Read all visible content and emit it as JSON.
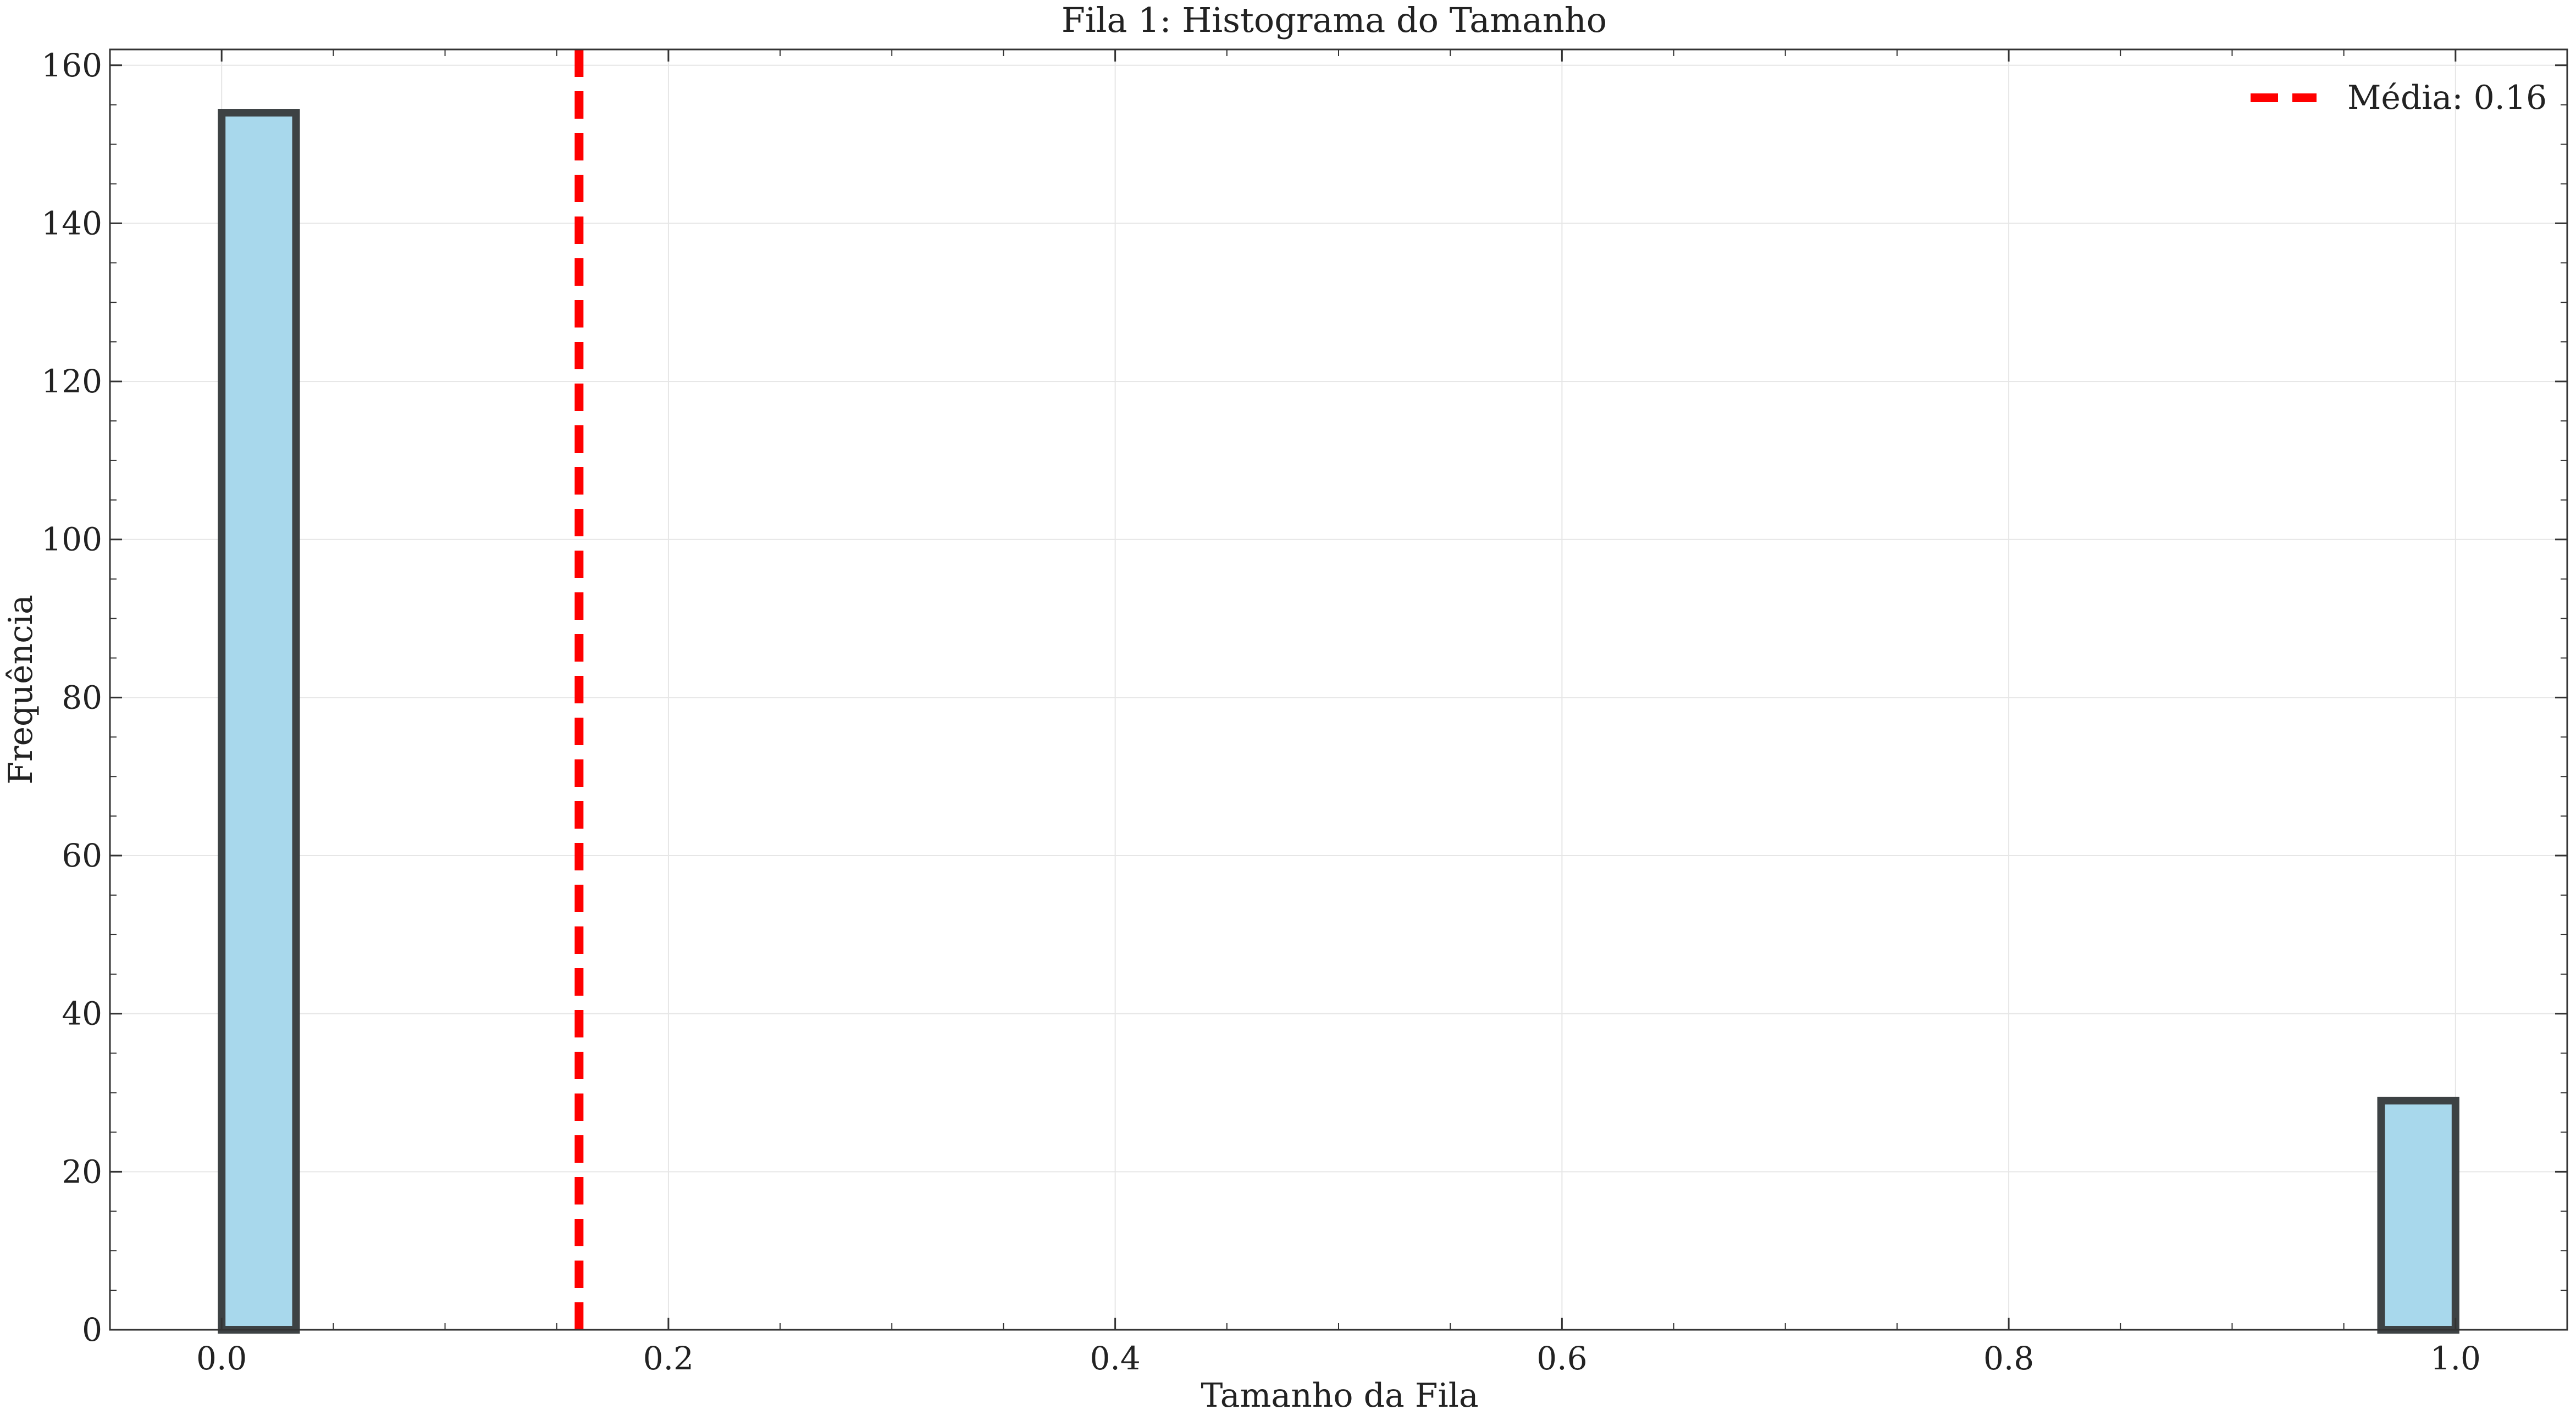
{
  "chart_data": {
    "type": "bar",
    "title": "Fila 1: Histograma do Tamanho",
    "xlabel": "Tamanho da Fila",
    "ylabel": "Frequência",
    "xlim": [
      -0.05,
      1.05
    ],
    "ylim": [
      0,
      162
    ],
    "xticks": [
      0.0,
      0.2,
      0.4,
      0.6,
      0.8,
      1.0
    ],
    "xtick_labels": [
      "0.0",
      "0.2",
      "0.4",
      "0.6",
      "0.8",
      "1.0"
    ],
    "yticks": [
      0,
      20,
      40,
      60,
      80,
      100,
      120,
      140,
      160
    ],
    "ytick_labels": [
      "0",
      "20",
      "40",
      "60",
      "80",
      "100",
      "120",
      "140",
      "160"
    ],
    "bins": {
      "x0": [
        0.0,
        0.0333,
        0.0667,
        0.1,
        0.1333,
        0.1667,
        0.2,
        0.2333,
        0.2667,
        0.3,
        0.3333,
        0.3667,
        0.4,
        0.4333,
        0.4667,
        0.5,
        0.5333,
        0.5667,
        0.6,
        0.6333,
        0.6667,
        0.7,
        0.7333,
        0.7667,
        0.8,
        0.8333,
        0.8667,
        0.9,
        0.9333,
        0.9667
      ],
      "x1": [
        0.0333,
        0.0667,
        0.1,
        0.1333,
        0.1667,
        0.2,
        0.2333,
        0.2667,
        0.3,
        0.3333,
        0.3667,
        0.4,
        0.4333,
        0.4667,
        0.5,
        0.5333,
        0.5667,
        0.6,
        0.6333,
        0.6667,
        0.7,
        0.7333,
        0.7667,
        0.8,
        0.8333,
        0.8667,
        0.9,
        0.9333,
        0.9667,
        1.0
      ],
      "values": [
        154,
        0,
        0,
        0,
        0,
        0,
        0,
        0,
        0,
        0,
        0,
        0,
        0,
        0,
        0,
        0,
        0,
        0,
        0,
        0,
        0,
        0,
        0,
        0,
        0,
        0,
        0,
        0,
        0,
        29
      ]
    },
    "mean_line": {
      "x": 0.16,
      "label": "Média: 0.16"
    },
    "grid": true,
    "legend_position": "top-right",
    "colors": {
      "bar_fill": "#a8d8ec",
      "bar_edge": "#3d4244",
      "mean_line": "#ff0000"
    }
  }
}
